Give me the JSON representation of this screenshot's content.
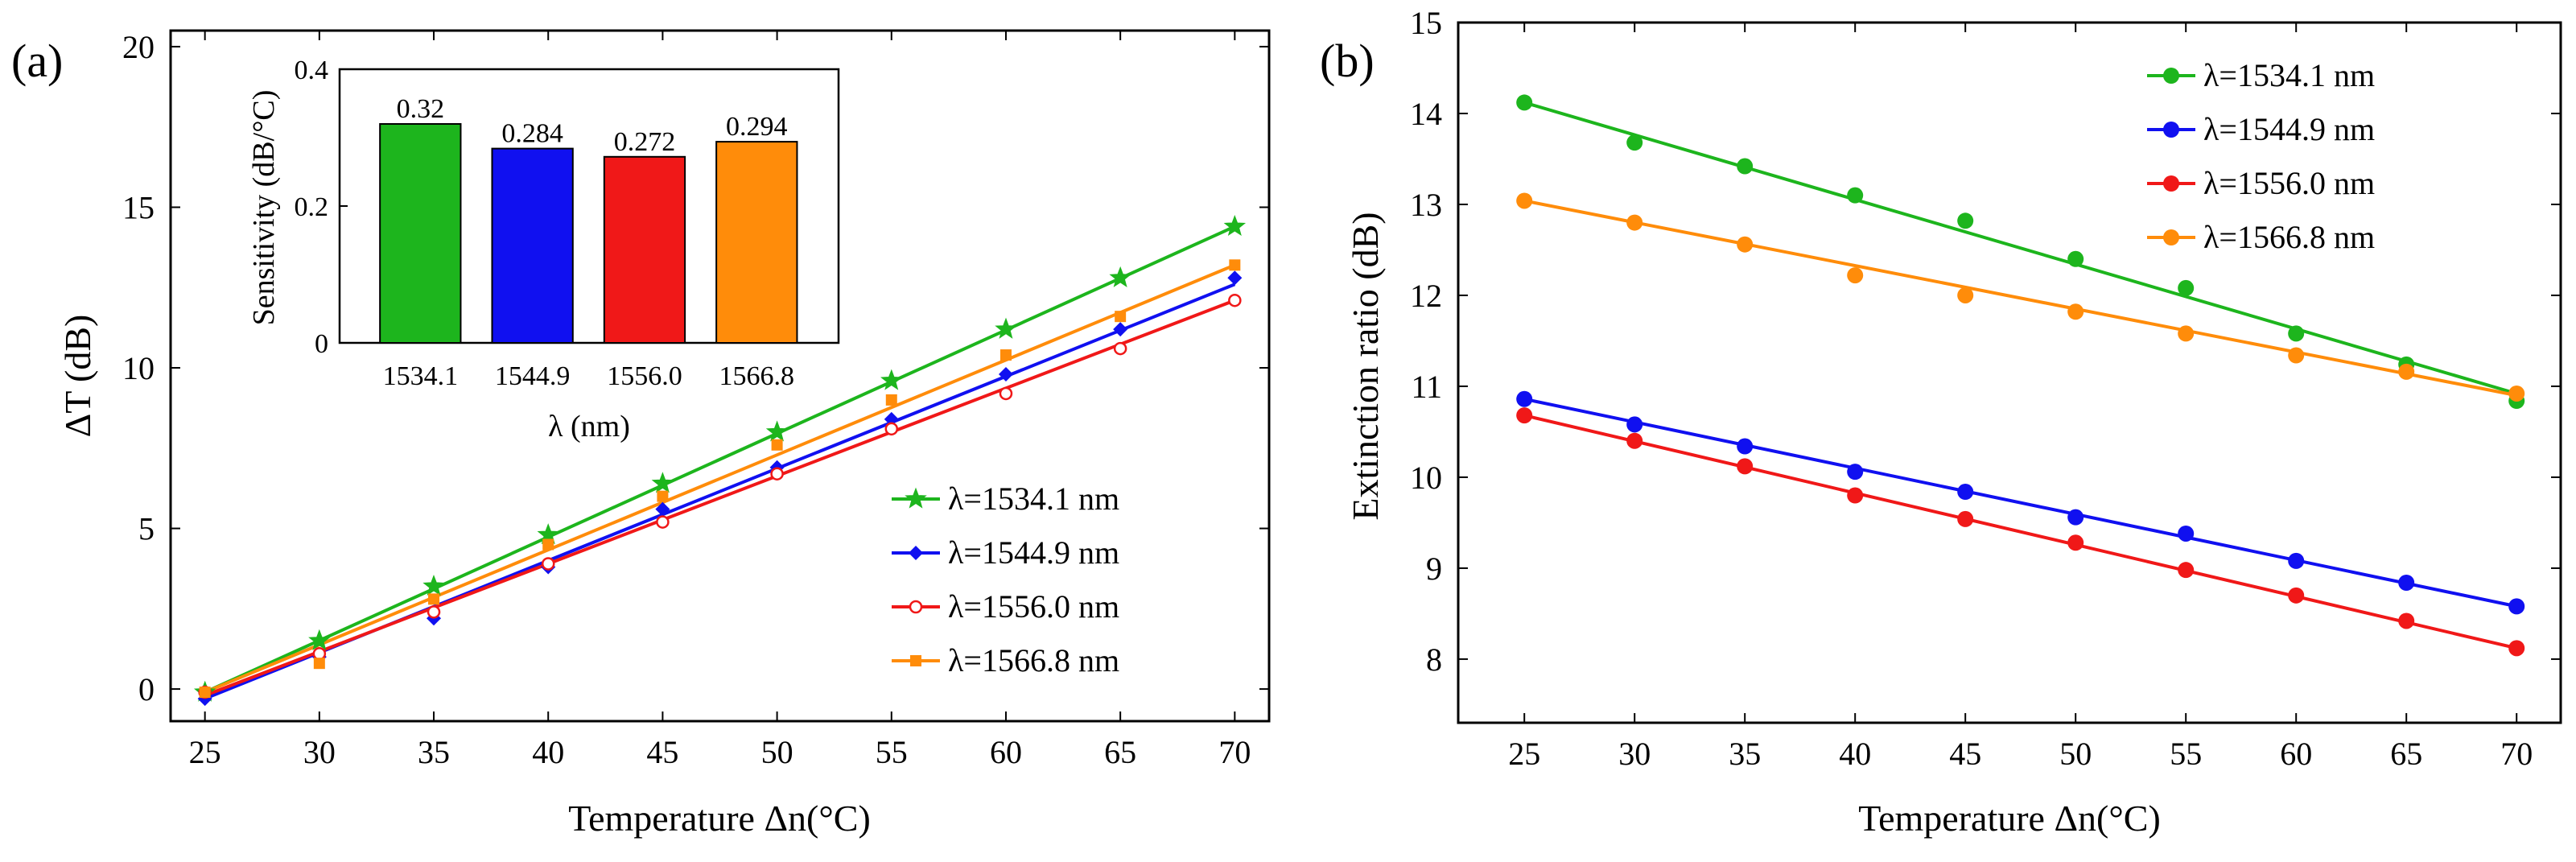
{
  "colors": {
    "green": "#1db51d",
    "blue": "#1010f0",
    "red": "#f01818",
    "orange": "#ff8c0a",
    "axis": "#000000"
  },
  "chart_data": [
    {
      "panel_label": "(a)",
      "type": "line",
      "xlabel": "Temperature Δn(°C)",
      "ylabel": "ΔT (dB)",
      "xlim": [
        23.5,
        71.5
      ],
      "ylim": [
        -1,
        20.5
      ],
      "xticks": [
        25,
        30,
        35,
        40,
        45,
        50,
        55,
        60,
        65,
        70
      ],
      "yticks": [
        0,
        5,
        10,
        15,
        20
      ],
      "legend_position": "bottom-right",
      "x": [
        25,
        30,
        35,
        40,
        45,
        50,
        55,
        60,
        65,
        70
      ],
      "series": [
        {
          "name": "λ=1534.1 nm",
          "color": "green",
          "marker": "star",
          "values": [
            -0.1,
            1.5,
            3.2,
            4.8,
            6.4,
            8.0,
            9.6,
            11.2,
            12.8,
            14.4
          ],
          "fit": [
            -0.1,
            14.4
          ]
        },
        {
          "name": "λ=1544.9 nm",
          "color": "blue",
          "marker": "diamond",
          "values": [
            -0.3,
            1.0,
            2.2,
            3.8,
            5.6,
            6.9,
            8.4,
            9.8,
            11.2,
            12.8
          ],
          "fit": [
            -0.3,
            12.6
          ]
        },
        {
          "name": "λ=1556.0 nm",
          "color": "red",
          "marker": "circle-open",
          "values": [
            -0.1,
            1.1,
            2.4,
            3.9,
            5.2,
            6.7,
            8.1,
            9.2,
            10.6,
            12.1
          ],
          "fit": [
            -0.2,
            12.1
          ]
        },
        {
          "name": "λ=1566.8 nm",
          "color": "orange",
          "marker": "square",
          "values": [
            -0.1,
            0.8,
            2.8,
            4.5,
            6.0,
            7.6,
            9.0,
            10.4,
            11.6,
            13.2
          ],
          "fit": [
            -0.1,
            13.2
          ]
        }
      ]
    },
    {
      "panel_label": "inset",
      "type": "bar",
      "xlabel": "λ (nm)",
      "ylabel": "Sensitivity (dB/°C)",
      "ylim": [
        0,
        0.4
      ],
      "yticks": [
        0,
        0.2,
        0.4
      ],
      "ytick_labels": [
        "0",
        "0.2",
        "0.4"
      ],
      "categories": [
        "1534.1",
        "1544.9",
        "1556.0",
        "1566.8"
      ],
      "values": [
        0.32,
        0.284,
        0.272,
        0.294
      ],
      "value_labels": [
        "0.32",
        "0.284",
        "0.272",
        "0.294"
      ],
      "bar_colors": [
        "green",
        "blue",
        "red",
        "orange"
      ]
    },
    {
      "panel_label": "(b)",
      "type": "line",
      "xlabel": "Temperature Δn(°C)",
      "ylabel": "Extinction ratio (dB)",
      "xlim": [
        22,
        72
      ],
      "ylim": [
        7.3,
        15
      ],
      "xticks": [
        25,
        30,
        35,
        40,
        45,
        50,
        55,
        60,
        65,
        70
      ],
      "yticks": [
        8,
        9,
        10,
        11,
        12,
        13,
        14,
        15
      ],
      "legend_position": "top-right",
      "x": [
        25,
        30,
        35,
        40,
        45,
        50,
        55,
        60,
        65,
        70
      ],
      "series": [
        {
          "name": "λ=1534.1 nm",
          "color": "green",
          "marker": "circle",
          "values": [
            14.12,
            13.68,
            13.42,
            13.1,
            12.82,
            12.4,
            12.08,
            11.58,
            11.24,
            10.84
          ],
          "fit": [
            14.12,
            10.92
          ]
        },
        {
          "name": "λ=1544.9 nm",
          "color": "blue",
          "marker": "circle",
          "values": [
            10.86,
            10.58,
            10.34,
            10.06,
            9.84,
            9.56,
            9.38,
            9.08,
            8.84,
            8.58
          ],
          "fit": [
            10.86,
            8.58
          ]
        },
        {
          "name": "λ=1556.0 nm",
          "color": "red",
          "marker": "circle",
          "values": [
            10.68,
            10.4,
            10.12,
            9.8,
            9.54,
            9.28,
            8.98,
            8.7,
            8.42,
            8.12
          ],
          "fit": [
            10.68,
            8.12
          ]
        },
        {
          "name": "λ=1566.8 nm",
          "color": "orange",
          "marker": "circle",
          "values": [
            13.04,
            12.8,
            12.56,
            12.22,
            12.0,
            11.82,
            11.58,
            11.34,
            11.16,
            10.92
          ],
          "fit": [
            13.04,
            10.9
          ]
        }
      ]
    }
  ]
}
